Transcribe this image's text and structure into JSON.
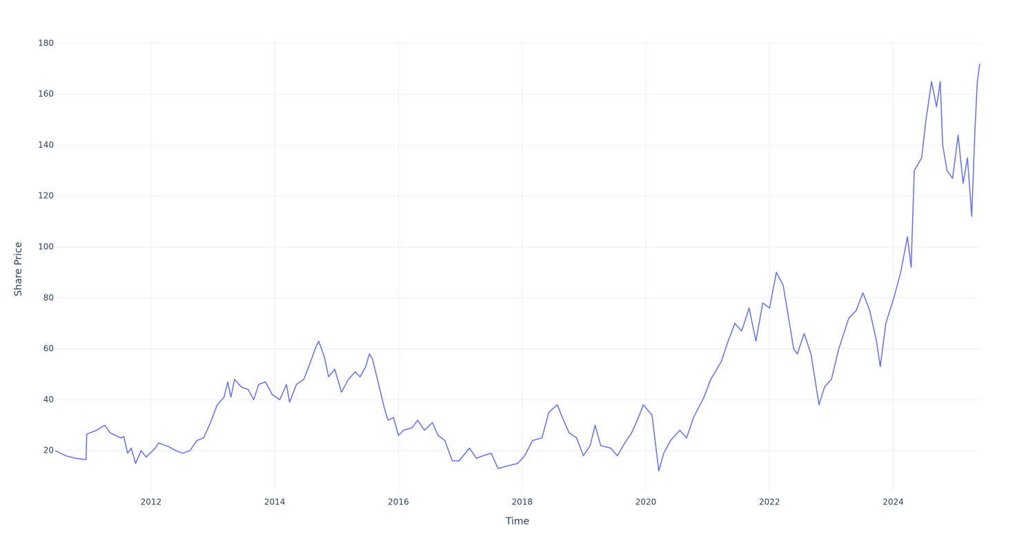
{
  "chart_data": {
    "type": "line",
    "xlabel": "Time",
    "ylabel": "Share Price",
    "xlim": [
      2010.45,
      2025.4
    ],
    "xticks": [
      2012,
      2014,
      2016,
      2018,
      2020,
      2022,
      2024
    ],
    "ylim": [
      3.5,
      180.5
    ],
    "yticks": [
      20,
      40,
      60,
      80,
      100,
      120,
      140,
      160,
      180
    ],
    "grid": true,
    "x": [
      2010.45,
      2010.62,
      2010.78,
      2010.95,
      2010.96,
      2011.12,
      2011.25,
      2011.34,
      2011.51,
      2011.56,
      2011.62,
      2011.68,
      2011.75,
      2011.84,
      2011.92,
      2012.07,
      2012.12,
      2012.29,
      2012.4,
      2012.51,
      2012.63,
      2012.74,
      2012.85,
      2012.96,
      2013.07,
      2013.18,
      2013.24,
      2013.29,
      2013.35,
      2013.46,
      2013.57,
      2013.66,
      2013.74,
      2013.85,
      2013.96,
      2014.08,
      2014.19,
      2014.24,
      2014.35,
      2014.47,
      2014.58,
      2014.67,
      2014.71,
      2014.8,
      2014.87,
      2014.97,
      2015.08,
      2015.19,
      2015.3,
      2015.38,
      2015.47,
      2015.53,
      2015.58,
      2015.66,
      2015.77,
      2015.83,
      2015.92,
      2016.0,
      2016.08,
      2016.22,
      2016.31,
      2016.42,
      2016.55,
      2016.64,
      2016.75,
      2016.87,
      2016.98,
      2017.15,
      2017.26,
      2017.37,
      2017.5,
      2017.61,
      2017.76,
      2017.93,
      2018.04,
      2018.17,
      2018.32,
      2018.43,
      2018.52,
      2018.57,
      2018.65,
      2018.76,
      2018.88,
      2018.99,
      2019.1,
      2019.18,
      2019.27,
      2019.43,
      2019.54,
      2019.66,
      2019.77,
      2019.88,
      2019.96,
      2020.1,
      2020.21,
      2020.29,
      2020.4,
      2020.55,
      2020.66,
      2020.77,
      2020.94,
      2021.05,
      2021.22,
      2021.33,
      2021.44,
      2021.55,
      2021.67,
      2021.78,
      2021.89,
      2022.0,
      2022.11,
      2022.22,
      2022.31,
      2022.39,
      2022.45,
      2022.56,
      2022.67,
      2022.8,
      2022.89,
      2023.0,
      2023.12,
      2023.28,
      2023.4,
      2023.51,
      2023.62,
      2023.73,
      2023.79,
      2023.88,
      2024.01,
      2024.12,
      2024.23,
      2024.29,
      2024.34,
      2024.46,
      2024.53,
      2024.62,
      2024.7,
      2024.76,
      2024.8,
      2024.87,
      2024.96,
      2025.05,
      2025.13,
      2025.2,
      2025.27,
      2025.32,
      2025.36,
      2025.4
    ],
    "series": [
      {
        "color": "#636efa",
        "values": [
          20,
          18,
          17,
          16.5,
          26.5,
          28,
          30,
          27,
          25,
          25.5,
          19,
          21,
          15,
          20,
          17.5,
          21,
          23,
          21.5,
          20,
          19,
          20,
          24,
          25,
          31,
          38,
          41,
          47,
          41,
          48,
          45,
          44,
          40,
          46,
          47,
          42,
          40,
          46,
          39,
          46,
          48,
          55,
          61,
          63,
          57,
          49,
          52,
          43,
          48,
          51,
          49,
          53,
          58,
          56,
          48,
          37,
          32,
          33,
          26,
          28,
          29,
          32,
          28,
          31,
          26,
          24,
          16,
          16,
          21,
          17,
          18,
          19,
          13,
          14,
          15,
          18,
          24,
          25,
          35,
          37,
          38,
          33,
          27,
          25,
          18,
          22,
          30,
          22,
          21,
          18,
          23,
          27,
          33,
          38,
          34,
          12,
          19,
          24,
          28,
          25,
          33,
          41,
          48,
          55,
          63,
          70,
          67,
          76,
          63,
          78,
          76,
          90,
          85,
          72,
          60,
          58,
          66,
          58,
          38,
          45,
          48,
          60,
          72,
          75,
          82,
          75,
          63,
          53,
          70,
          80,
          90,
          104,
          92,
          130,
          135,
          150,
          165,
          155,
          165,
          140,
          130,
          127,
          144,
          125,
          135,
          112,
          145,
          165,
          172
        ]
      }
    ]
  }
}
